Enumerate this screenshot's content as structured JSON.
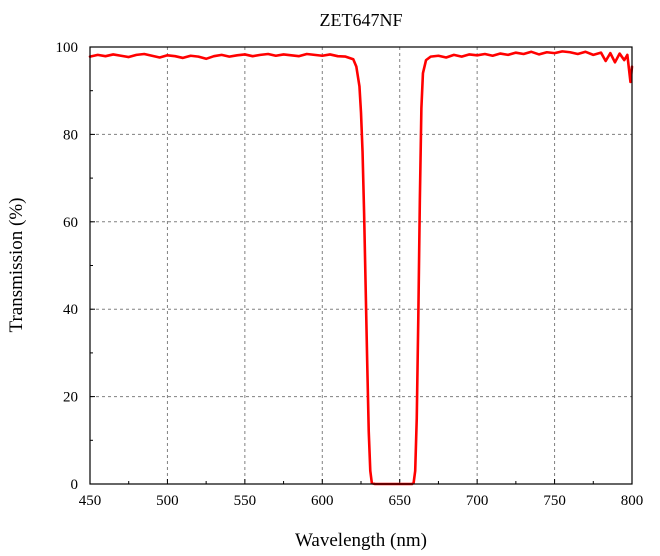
{
  "chart_data": {
    "type": "line",
    "title": "ZET647NF",
    "xlabel": "Wavelength (nm)",
    "ylabel": "Transmission (%)",
    "xlim": [
      450,
      800
    ],
    "ylim": [
      0,
      100
    ],
    "xticks": [
      "450",
      "500",
      "550",
      "600",
      "650",
      "700",
      "750",
      "800"
    ],
    "yticks": [
      "0",
      "20",
      "40",
      "60",
      "80",
      "100"
    ],
    "grid": true,
    "line_color": "#ff0000",
    "series": [
      {
        "x": [
          450,
          455,
          460,
          465,
          470,
          475,
          480,
          485,
          490,
          495,
          500,
          505,
          510,
          515,
          520,
          525,
          530,
          535,
          540,
          545,
          550,
          555,
          560,
          565,
          570,
          575,
          580,
          585,
          590,
          595,
          600,
          605,
          610,
          615,
          620,
          622,
          624,
          625,
          626,
          627,
          628,
          629,
          630,
          631,
          632,
          634,
          640,
          645,
          650,
          655,
          658,
          659,
          660,
          661,
          662,
          663,
          664,
          665,
          667,
          670,
          675,
          680,
          685,
          690,
          695,
          700,
          705,
          710,
          715,
          720,
          725,
          730,
          735,
          740,
          745,
          750,
          755,
          760,
          765,
          770,
          775,
          780,
          783,
          786,
          789,
          792,
          795,
          797,
          799,
          800
        ],
        "y": [
          97.8,
          98.2,
          97.9,
          98.3,
          98.0,
          97.7,
          98.2,
          98.4,
          98.0,
          97.6,
          98.1,
          97.9,
          97.5,
          98.0,
          97.8,
          97.3,
          97.9,
          98.2,
          97.8,
          98.1,
          98.3,
          97.9,
          98.2,
          98.4,
          98.0,
          98.3,
          98.1,
          97.9,
          98.4,
          98.2,
          98.0,
          98.3,
          97.9,
          97.8,
          97.2,
          95.5,
          91.0,
          85.0,
          76.0,
          62.0,
          45.0,
          28.0,
          12.0,
          3.0,
          0.2,
          0.0,
          0.0,
          0.0,
          0.0,
          0.0,
          0.0,
          0.3,
          3.0,
          15.0,
          38.0,
          65.0,
          86.0,
          94.0,
          97.0,
          97.8,
          98.0,
          97.6,
          98.2,
          97.8,
          98.3,
          98.1,
          98.4,
          98.0,
          98.5,
          98.2,
          98.7,
          98.4,
          98.9,
          98.3,
          98.8,
          98.6,
          99.0,
          98.8,
          98.4,
          98.9,
          98.2,
          98.7,
          96.8,
          98.6,
          96.5,
          98.5,
          97.0,
          98.2,
          92.0,
          95.5
        ]
      }
    ]
  }
}
